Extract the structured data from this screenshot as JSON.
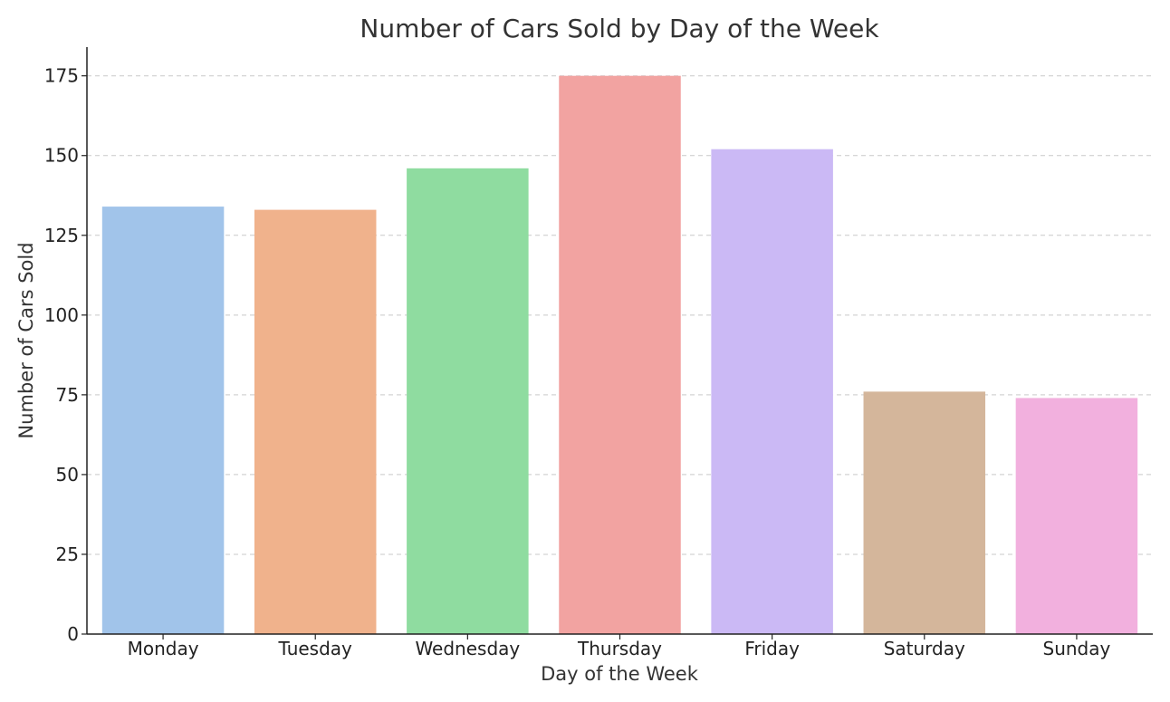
{
  "chart_data": {
    "type": "bar",
    "title": "Number of Cars Sold by Day of the Week",
    "xlabel": "Day of the Week",
    "ylabel": "Number of Cars Sold",
    "categories": [
      "Monday",
      "Tuesday",
      "Wednesday",
      "Thursday",
      "Friday",
      "Saturday",
      "Sunday"
    ],
    "values": [
      134,
      133,
      146,
      175,
      152,
      76,
      74
    ],
    "colors": [
      "#a1c4ea",
      "#f0b28c",
      "#8fdca0",
      "#f2a3a1",
      "#cbb9f5",
      "#d4b69b",
      "#f2b0de"
    ],
    "ylim": [
      0,
      184
    ],
    "yticks": [
      0,
      25,
      50,
      75,
      100,
      125,
      150,
      175
    ],
    "grid": "y",
    "legend": "none"
  }
}
